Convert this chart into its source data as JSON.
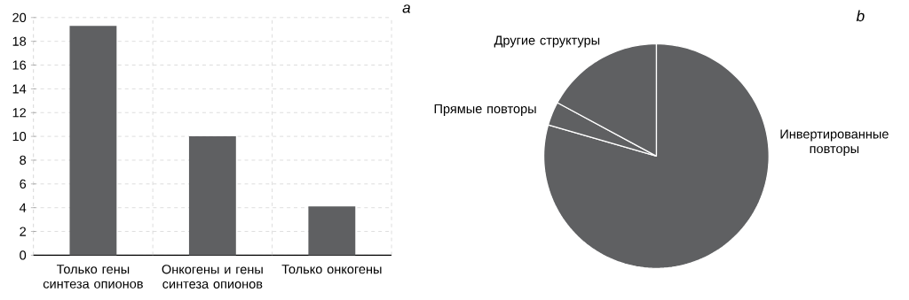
{
  "chart_data": [
    {
      "type": "bar",
      "categories": [
        "Только гены синтеза опионов",
        "Онкогены и гены синтеза опионов",
        "Только онкогены"
      ],
      "values": [
        19.3,
        10,
        4.1
      ],
      "color": "#5f6062",
      "ylim": [
        0,
        20
      ],
      "yticks": [
        0,
        2,
        4,
        6,
        8,
        10,
        12,
        14,
        16,
        18,
        20
      ],
      "grid": true,
      "annotations": [
        "a"
      ]
    },
    {
      "type": "pie",
      "categories": [
        "Инвертированные повторы",
        "Прямые повторы",
        "Другие структуры"
      ],
      "values": [
        79.5,
        3.4,
        17.1
      ],
      "colors": [
        "#5f6062",
        "#5f6062",
        "#5f6062"
      ],
      "annotations": [
        "b"
      ]
    }
  ]
}
